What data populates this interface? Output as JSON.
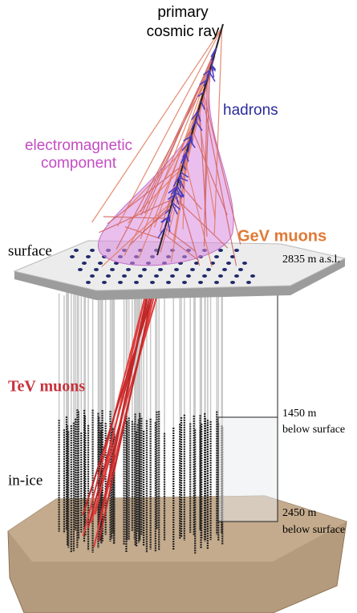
{
  "labels": {
    "primary": [
      "primary",
      "cosmic ray"
    ],
    "hadrons": "hadrons",
    "electromagnetic": [
      "electromagnetic",
      "component"
    ],
    "gev_muons": "GeV muons",
    "surface": "surface",
    "altitude": "2835 m a.s.l.",
    "tev_muons": "TeV muons",
    "top_depth": [
      "1450 m",
      "below surface"
    ],
    "in_ice": "in-ice",
    "bottom_depth": [
      "2450 m",
      "below surface"
    ]
  }
}
